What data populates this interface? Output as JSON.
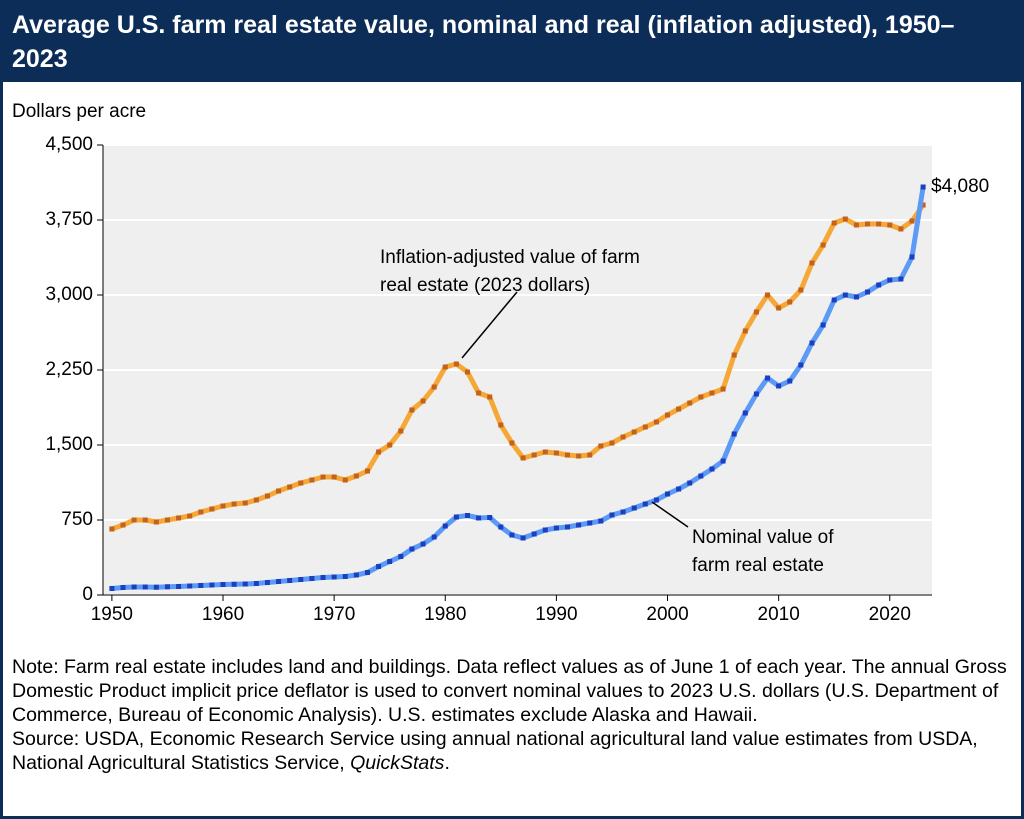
{
  "title": "Average U.S. farm real estate value, nominal and real (inflation adjusted), 1950–2023",
  "chart_data": {
    "type": "line",
    "y_label": "Dollars per acre",
    "x": [
      1950,
      1951,
      1952,
      1953,
      1954,
      1955,
      1956,
      1957,
      1958,
      1959,
      1960,
      1961,
      1962,
      1963,
      1964,
      1965,
      1966,
      1967,
      1968,
      1969,
      1970,
      1971,
      1972,
      1973,
      1974,
      1975,
      1976,
      1977,
      1978,
      1979,
      1980,
      1981,
      1982,
      1983,
      1984,
      1985,
      1986,
      1987,
      1988,
      1989,
      1990,
      1991,
      1992,
      1993,
      1994,
      1995,
      1996,
      1997,
      1998,
      1999,
      2000,
      2001,
      2002,
      2003,
      2004,
      2005,
      2006,
      2007,
      2008,
      2009,
      2010,
      2011,
      2012,
      2013,
      2014,
      2015,
      2016,
      2017,
      2018,
      2019,
      2020,
      2021,
      2022,
      2023
    ],
    "series": [
      {
        "name": "Inflation-adjusted value of farm real estate (2023 dollars)",
        "color": "#f5a836",
        "marker_color": "#c2621c",
        "values": [
          660,
          700,
          750,
          750,
          730,
          750,
          770,
          790,
          830,
          860,
          890,
          910,
          920,
          950,
          990,
          1040,
          1080,
          1120,
          1150,
          1180,
          1180,
          1150,
          1190,
          1240,
          1430,
          1500,
          1640,
          1850,
          1940,
          2080,
          2280,
          2310,
          2230,
          2020,
          1980,
          1700,
          1520,
          1370,
          1400,
          1430,
          1420,
          1400,
          1390,
          1400,
          1490,
          1520,
          1580,
          1630,
          1680,
          1730,
          1800,
          1860,
          1920,
          1980,
          2020,
          2060,
          2400,
          2640,
          2830,
          3000,
          2870,
          2930,
          3050,
          3320,
          3500,
          3720,
          3760,
          3700,
          3710,
          3710,
          3700,
          3660,
          3740,
          3900
        ]
      },
      {
        "name": "Nominal value of farm real estate",
        "color": "#5b9bf5",
        "marker_color": "#1b3fbf",
        "values": [
          65,
          75,
          80,
          80,
          78,
          82,
          85,
          90,
          95,
          100,
          105,
          107,
          110,
          115,
          125,
          135,
          145,
          155,
          165,
          175,
          180,
          185,
          200,
          225,
          285,
          335,
          385,
          460,
          510,
          580,
          690,
          780,
          795,
          770,
          775,
          680,
          600,
          570,
          610,
          650,
          670,
          680,
          700,
          720,
          740,
          800,
          830,
          870,
          910,
          950,
          1010,
          1060,
          1120,
          1190,
          1260,
          1340,
          1610,
          1820,
          2010,
          2170,
          2090,
          2140,
          2300,
          2520,
          2700,
          2950,
          3000,
          2980,
          3030,
          3100,
          3150,
          3160,
          3380,
          4080
        ],
        "value_labels": [
          null,
          null,
          null,
          null,
          null,
          null,
          null,
          null,
          null,
          null,
          null,
          null,
          null,
          null,
          null,
          null,
          null,
          null,
          null,
          null,
          null,
          null,
          null,
          null,
          null,
          null,
          null,
          null,
          null,
          null,
          null,
          null,
          null,
          null,
          null,
          null,
          null,
          null,
          null,
          null,
          null,
          null,
          null,
          null,
          null,
          null,
          null,
          null,
          null,
          null,
          null,
          null,
          null,
          null,
          null,
          null,
          null,
          null,
          null,
          null,
          null,
          null,
          null,
          null,
          null,
          null,
          null,
          null,
          null,
          null,
          null,
          null,
          null,
          "$4,080"
        ]
      }
    ],
    "annotations": [
      {
        "lines": [
          "Inflation-adjusted value of farm",
          "real estate (2023 dollars)"
        ]
      },
      {
        "lines": [
          "Nominal value of",
          "farm real estate"
        ]
      }
    ],
    "xlim": [
      1949.2,
      2023.8
    ],
    "xticks": [
      1950,
      1960,
      1970,
      1980,
      1990,
      2000,
      2010,
      2020
    ],
    "ylim": [
      0,
      4500
    ],
    "yticks": [
      0,
      750,
      {
        "value": 1500,
        "label": "1,500"
      },
      {
        "value": 2250,
        "label": "2,250"
      },
      {
        "value": 3000,
        "label": "3,000"
      },
      {
        "value": 3750,
        "label": "3,750"
      },
      {
        "value": 4500,
        "label": "4,500"
      }
    ],
    "grid": true
  },
  "notes": {
    "note": "Note: Farm real estate includes land and buildings. Data reflect values as of June 1 of each year. The annual Gross Domestic Product implicit price deflator is used to convert nominal values to 2023 U.S. dollars (U.S. Department of Commerce, Bureau of Economic Analysis). U.S. estimates exclude Alaska and Hawaii.",
    "source": [
      "Source: USDA, Economic Research Service using annual national agricultural land value estimates from USDA, National Agricultural Statistics Service, ",
      "QuickStats",
      "."
    ]
  }
}
